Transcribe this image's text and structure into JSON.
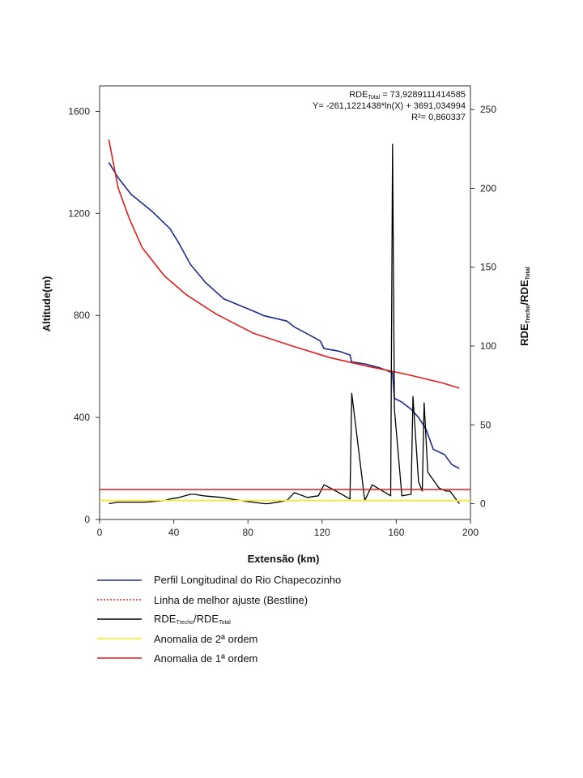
{
  "chart_data": {
    "type": "line",
    "xlabel": "Extensão (km)",
    "ylabel": "Altitude(m)",
    "y2label": {
      "main": "RDE",
      "sub1": "Trecho",
      "sep": "/RDE",
      "sub2": "Total"
    },
    "xlim": [
      0,
      200
    ],
    "ylim": [
      0,
      1700
    ],
    "y2lim": [
      -10,
      265
    ],
    "xticks": [
      0,
      40,
      80,
      120,
      160,
      200
    ],
    "yticks": [
      0,
      400,
      800,
      1200,
      1600
    ],
    "y2ticks": [
      0,
      50,
      100,
      150,
      200,
      250
    ],
    "annotation": {
      "line1_main": "RDE",
      "line1_sub": "Total",
      "line1_rest": " = 73,9289111414585",
      "line2": "Y= -261,1221438*ln(X) + 3691,034994",
      "line3": "R²= 0,860337"
    },
    "series": [
      {
        "name": "Perfil Longitudinal do Rio Chapecozinho",
        "color": "#1f2a8c",
        "axis": "left",
        "points": [
          [
            5,
            1400
          ],
          [
            10,
            1340
          ],
          [
            17,
            1275
          ],
          [
            28,
            1210
          ],
          [
            38,
            1140
          ],
          [
            43,
            1080
          ],
          [
            49,
            1000
          ],
          [
            57,
            930
          ],
          [
            67,
            865
          ],
          [
            77,
            835
          ],
          [
            87,
            805
          ],
          [
            88,
            800
          ],
          [
            101,
            778
          ],
          [
            105,
            755
          ],
          [
            114,
            720
          ],
          [
            119,
            700
          ],
          [
            121,
            670
          ],
          [
            129,
            660
          ],
          [
            135,
            645
          ],
          [
            136,
            618
          ],
          [
            143,
            610
          ],
          [
            151,
            595
          ],
          [
            158,
            575
          ],
          [
            159,
            475
          ],
          [
            163,
            460
          ],
          [
            168,
            432
          ],
          [
            172,
            400
          ],
          [
            176,
            355
          ],
          [
            180,
            275
          ],
          [
            186,
            255
          ],
          [
            190,
            215
          ],
          [
            194,
            200
          ]
        ]
      },
      {
        "name": "Linha de melhor ajuste (Bestline)",
        "color": "#e11d1d",
        "axis": "left",
        "points": [
          [
            5,
            1490
          ],
          [
            10,
            1300
          ],
          [
            16,
            1180
          ],
          [
            23,
            1065
          ],
          [
            35,
            955
          ],
          [
            47,
            880
          ],
          [
            63,
            805
          ],
          [
            83,
            730
          ],
          [
            104,
            680
          ],
          [
            124,
            635
          ],
          [
            145,
            600
          ],
          [
            165,
            570
          ],
          [
            185,
            535
          ],
          [
            194,
            515
          ]
        ]
      },
      {
        "name": "RDE Trecho/RDE Total",
        "color": "#000000",
        "axis": "right",
        "points": [
          [
            5,
            0
          ],
          [
            10,
            1
          ],
          [
            25,
            1
          ],
          [
            35,
            2
          ],
          [
            38,
            3
          ],
          [
            43,
            4
          ],
          [
            49,
            6
          ],
          [
            51,
            6
          ],
          [
            56,
            5
          ],
          [
            66,
            4
          ],
          [
            76,
            2
          ],
          [
            89,
            0
          ],
          [
            91,
            0
          ],
          [
            101,
            2
          ],
          [
            105,
            7
          ],
          [
            112,
            4
          ],
          [
            118,
            5
          ],
          [
            121,
            12
          ],
          [
            126,
            9
          ],
          [
            135,
            3
          ],
          [
            136,
            70
          ],
          [
            143,
            2
          ],
          [
            147,
            12
          ],
          [
            157,
            5
          ],
          [
            158,
            228
          ],
          [
            159,
            60
          ],
          [
            163,
            5
          ],
          [
            168,
            6
          ],
          [
            169,
            68
          ],
          [
            172,
            14
          ],
          [
            174,
            8
          ],
          [
            175,
            64
          ],
          [
            177,
            20
          ],
          [
            180,
            15
          ],
          [
            183,
            10
          ],
          [
            187,
            8
          ],
          [
            189,
            8
          ],
          [
            194,
            0
          ]
        ]
      },
      {
        "name": "Anomalia de 2ª ordem",
        "color": "#f5ee1a",
        "axis": "right",
        "points": [
          [
            0,
            2
          ],
          [
            200,
            2
          ]
        ]
      },
      {
        "name": "Anomalia de 1ª ordem",
        "color": "#e11d1d",
        "axis": "right",
        "points": [
          [
            0,
            9
          ],
          [
            200,
            9
          ]
        ]
      }
    ],
    "legend": {
      "placement": "below",
      "items": [
        {
          "label": "Perfil Longitudinal do Rio Chapecozinho",
          "color": "#1f2a8c",
          "style": "solid"
        },
        {
          "label": "Linha de melhor ajuste (Bestline)",
          "color": "#e11d1d",
          "style": "dotted"
        },
        {
          "label_main": "RDE",
          "label_sub1": "Trecho",
          "label_sep": "/RDE",
          "label_sub2": "Total",
          "color": "#000000",
          "style": "solid"
        },
        {
          "label": "Anomalia de 2ª ordem",
          "color": "#f5ee1a",
          "style": "solid"
        },
        {
          "label": "Anomalia de 1ª ordem",
          "color": "#e11d1d",
          "style": "solid"
        }
      ]
    }
  }
}
